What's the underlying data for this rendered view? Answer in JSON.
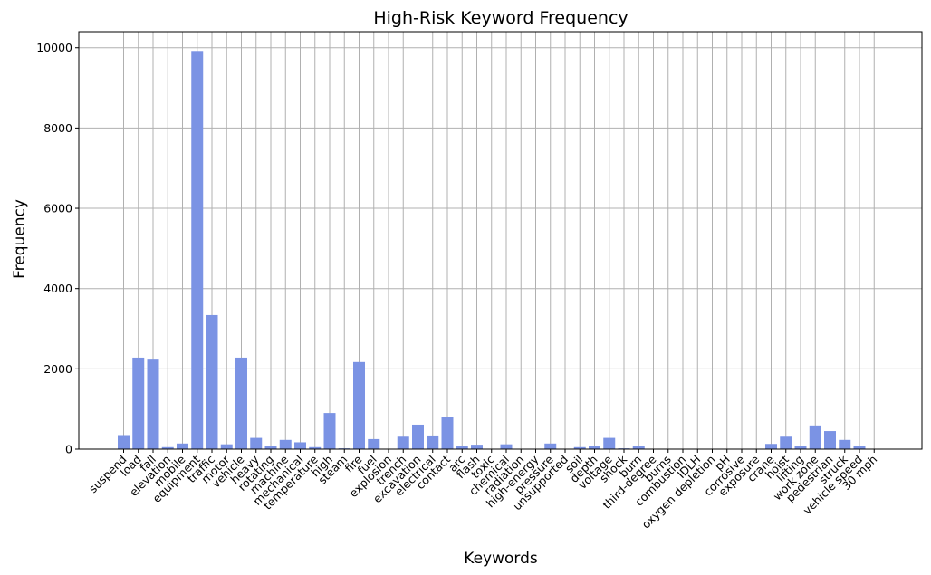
{
  "chart_data": {
    "type": "bar",
    "title": "High-Risk Keyword Frequency",
    "xlabel": "Keywords",
    "ylabel": "Frequency",
    "ylim": [
      0,
      10400
    ],
    "yticks": [
      0,
      2000,
      4000,
      6000,
      8000,
      10000
    ],
    "grid": true,
    "bar_color": "#7b93e4",
    "categories": [
      "suspend",
      "load",
      "fall",
      "elevation",
      "mobile",
      "equipment",
      "traffic",
      "motor",
      "vehicle",
      "heavy",
      "rotating",
      "machine",
      "mechanical",
      "temperature",
      "high",
      "steam",
      "fire",
      "fuel",
      "explosion",
      "trench",
      "excavation",
      "electrical",
      "contact",
      "arc",
      "flash",
      "toxic",
      "chemical",
      "radiation",
      "high-energy",
      "pressure",
      "unsupported",
      "soil",
      "depth",
      "voltage",
      "shock",
      "burn",
      "third-degree",
      "burns",
      "combustion",
      "IDLH",
      "oxygen depletion",
      "pH",
      "corrosive",
      "exposure",
      "crane",
      "hoist",
      "lifting",
      "work zone",
      "pedestrian",
      "struck",
      "vehicle speed",
      "30 mph"
    ],
    "values": [
      350,
      2280,
      2230,
      50,
      140,
      9920,
      3340,
      120,
      2280,
      280,
      80,
      230,
      170,
      50,
      900,
      20,
      2170,
      250,
      0,
      310,
      610,
      340,
      810,
      90,
      110,
      0,
      120,
      10,
      0,
      140,
      0,
      50,
      70,
      280,
      20,
      70,
      0,
      10,
      0,
      0,
      0,
      0,
      0,
      0,
      130,
      310,
      90,
      590,
      450,
      230,
      70,
      0
    ]
  }
}
